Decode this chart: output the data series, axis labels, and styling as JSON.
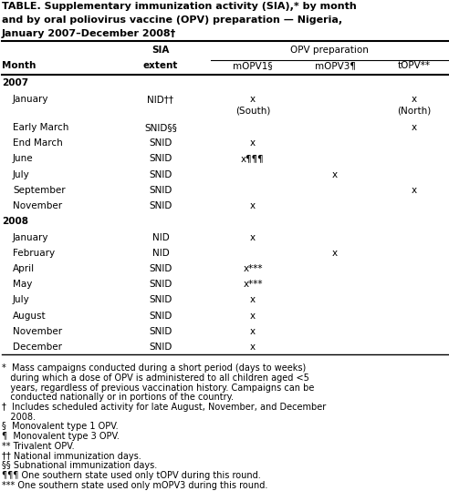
{
  "title_lines": [
    "TABLE. Supplementary immunization activity (SIA),* by month",
    "and by oral poliovirus vaccine (OPV) preparation — Nigeria,",
    "January 2007–December 2008†"
  ],
  "opv_group_label": "OPV preparation",
  "col_headers_row1": [
    "",
    "SIA",
    "OPV preparation",
    "",
    ""
  ],
  "col_headers_row2": [
    "Month",
    "extent",
    "mOPV1§",
    "mOPV3¶",
    "tOPV**"
  ],
  "rows": [
    {
      "year": "2007",
      "month": null,
      "extent": null,
      "c1": null,
      "c2": null,
      "c3": null
    },
    {
      "year": null,
      "month": "January",
      "extent": "NID††",
      "c1": "x\n(South)",
      "c2": "",
      "c3": "x\n(North)"
    },
    {
      "year": null,
      "month": "Early March",
      "extent": "SNID§§",
      "c1": "",
      "c2": "",
      "c3": "x"
    },
    {
      "year": null,
      "month": "End March",
      "extent": "SNID",
      "c1": "x",
      "c2": "",
      "c3": ""
    },
    {
      "year": null,
      "month": "June",
      "extent": "SNID",
      "c1": "x¶¶¶",
      "c2": "",
      "c3": ""
    },
    {
      "year": null,
      "month": "July",
      "extent": "SNID",
      "c1": "",
      "c2": "x",
      "c3": ""
    },
    {
      "year": null,
      "month": "September",
      "extent": "SNID",
      "c1": "",
      "c2": "",
      "c3": "x"
    },
    {
      "year": null,
      "month": "November",
      "extent": "SNID",
      "c1": "x",
      "c2": "",
      "c3": ""
    },
    {
      "year": "2008",
      "month": null,
      "extent": null,
      "c1": null,
      "c2": null,
      "c3": null
    },
    {
      "year": null,
      "month": "January",
      "extent": "NID",
      "c1": "x",
      "c2": "",
      "c3": ""
    },
    {
      "year": null,
      "month": "February",
      "extent": "NID",
      "c1": "",
      "c2": "x",
      "c3": ""
    },
    {
      "year": null,
      "month": "April",
      "extent": "SNID",
      "c1": "x***",
      "c2": "",
      "c3": ""
    },
    {
      "year": null,
      "month": "May",
      "extent": "SNID",
      "c1": "x***",
      "c2": "",
      "c3": ""
    },
    {
      "year": null,
      "month": "July",
      "extent": "SNID",
      "c1": "x",
      "c2": "",
      "c3": ""
    },
    {
      "year": null,
      "month": "August",
      "extent": "SNID",
      "c1": "x",
      "c2": "",
      "c3": ""
    },
    {
      "year": null,
      "month": "November",
      "extent": "SNID",
      "c1": "x",
      "c2": "",
      "c3": ""
    },
    {
      "year": null,
      "month": "December",
      "extent": "SNID",
      "c1": "x",
      "c2": "",
      "c3": ""
    }
  ],
  "footnote_lines": [
    "*  Mass campaigns conducted during a short period (days to weeks)",
    "   during which a dose of OPV is administered to all children aged <5",
    "   years, regardless of previous vaccination history. Campaigns can be",
    "   conducted nationally or in portions of the country.",
    "†  Includes scheduled activity for late August, November, and December",
    "   2008.",
    "§  Monovalent type 1 OPV.",
    "¶  Monovalent type 3 OPV.",
    "** Trivalent OPV.",
    "†† National immunization days.",
    "§§ Subnational immunization days.",
    "¶¶¶ One southern state used only tOPV during this round.",
    "*** One southern state used only mOPV3 during this round."
  ],
  "bg_color": "#ffffff",
  "text_color": "#000000"
}
